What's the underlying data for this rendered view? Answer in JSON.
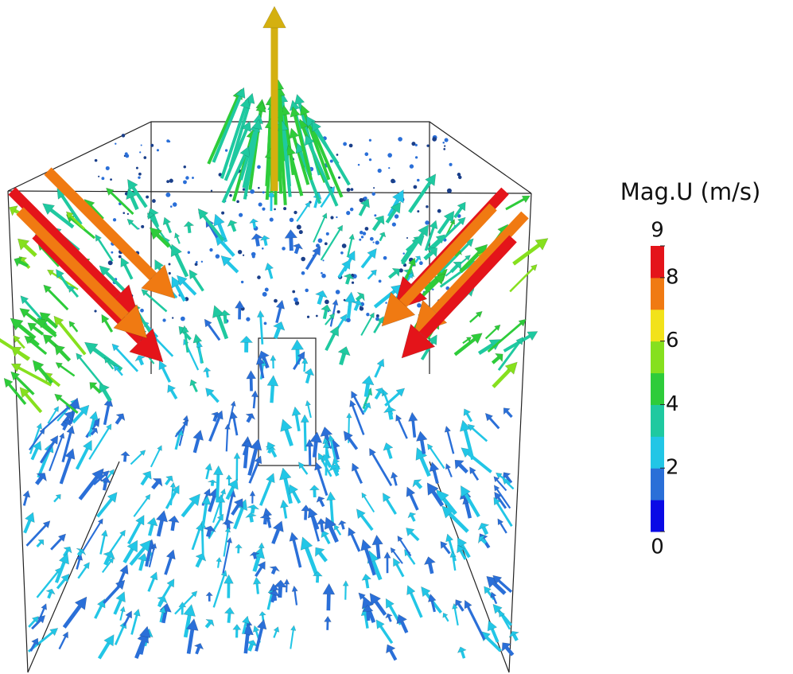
{
  "colorbar": {
    "title": "Mag.U (m/s)",
    "range": [
      0,
      9
    ],
    "ticks": [
      0,
      2,
      4,
      6,
      8,
      9
    ],
    "colors": [
      "#0a0ae6",
      "#2a6fd8",
      "#22c6e6",
      "#1fc9a0",
      "#2ecc3a",
      "#86e01e",
      "#f2e21a",
      "#f07a12",
      "#e4141a"
    ]
  }
}
